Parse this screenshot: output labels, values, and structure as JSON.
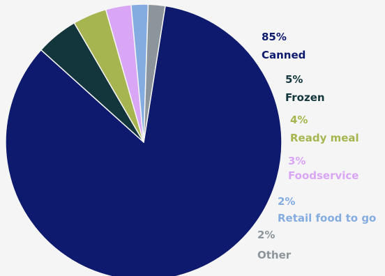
{
  "chart_data": {
    "type": "pie",
    "title": "",
    "slices": [
      {
        "label": "Canned",
        "value": 85,
        "value_text": "85%",
        "color": "#0d1a6e"
      },
      {
        "label": "Frozen",
        "value": 5,
        "value_text": "5%",
        "color": "#13363d"
      },
      {
        "label": "Ready meal",
        "value": 4,
        "value_text": "4%",
        "color": "#a7b550"
      },
      {
        "label": "Foodservice",
        "value": 3,
        "value_text": "3%",
        "color": "#d9a6f5"
      },
      {
        "label": "Retail food to go",
        "value": 2,
        "value_text": "2%",
        "color": "#84ace0"
      },
      {
        "label": "Other",
        "value": 2,
        "value_text": "2%",
        "color": "#8c959b"
      }
    ],
    "legend": "none"
  }
}
